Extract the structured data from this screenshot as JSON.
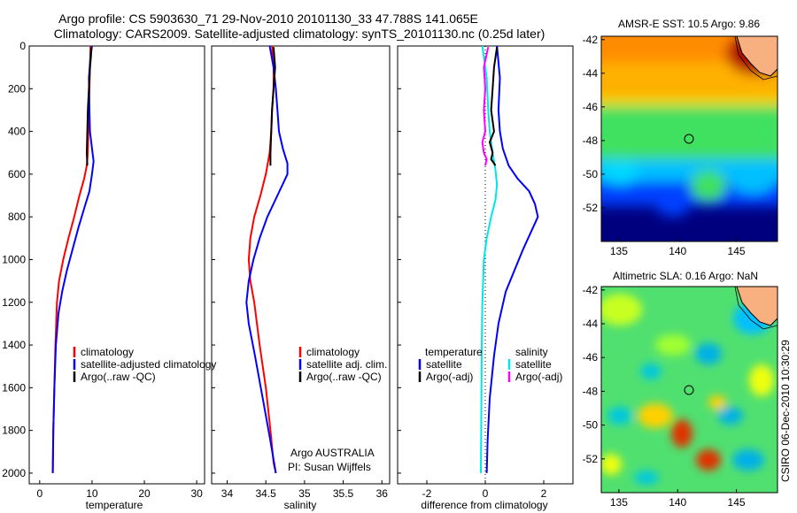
{
  "title": {
    "line1": "Argo profile: CS 5903630_71 29-Nov-2010 20101130_33 47.788S 141.065E",
    "line2": "Climatology: CARS2009. Satellite-adjusted climatology: synTS_20101130.nc (0.25d later)"
  },
  "credit": "CSIRO 06-Dec-2010 10:30:29",
  "chart_data": [
    {
      "type": "line",
      "name": "temperature-panel",
      "xlabel": "temperature",
      "ylabel": "",
      "xlim": [
        -2,
        31.5
      ],
      "ylim": [
        0,
        2050
      ],
      "y_reversed": true,
      "xticks": [
        0,
        10,
        20,
        30
      ],
      "yticks": [
        0,
        200,
        400,
        600,
        800,
        1000,
        1200,
        1400,
        1600,
        1800,
        2000
      ],
      "legend": [
        "climatology",
        "satellite-adjusted climatology",
        "Argo(..raw -QC)"
      ],
      "legend_position": "lower-right",
      "series": [
        {
          "label": "climatology",
          "color": "#ff0000",
          "x": [
            9.7,
            9.6,
            9.5,
            9.4,
            9.3,
            9.2,
            9.0,
            8.5,
            7.6,
            6.6,
            5.5,
            4.5,
            3.7,
            3.3,
            3.0,
            2.8,
            2.6,
            2.5
          ],
          "y": [
            0,
            100,
            200,
            300,
            400,
            500,
            560,
            620,
            700,
            800,
            900,
            1000,
            1100,
            1200,
            1400,
            1600,
            1800,
            2000
          ]
        },
        {
          "label": "satellite-adjusted climatology",
          "color": "#0000ff",
          "x": [
            10.0,
            9.7,
            9.4,
            9.5,
            9.6,
            10.0,
            10.3,
            10.0,
            9.5,
            8.5,
            7.4,
            6.3,
            5.2,
            4.3,
            3.6,
            3.1,
            2.8,
            2.6,
            2.5
          ],
          "y": [
            0,
            50,
            150,
            300,
            400,
            480,
            540,
            600,
            680,
            760,
            850,
            950,
            1050,
            1150,
            1250,
            1400,
            1600,
            1800,
            2000
          ]
        },
        {
          "label": "Argo(..raw -QC)",
          "color": "#000000",
          "x": [
            9.9,
            9.8,
            9.6,
            9.4,
            9.2,
            9.1,
            9.0,
            9.1
          ],
          "y": [
            5,
            50,
            100,
            200,
            300,
            400,
            500,
            560
          ]
        }
      ]
    },
    {
      "type": "line",
      "name": "salinity-panel",
      "xlabel": "salinity",
      "ylabel": "",
      "xlim": [
        33.8,
        36.1
      ],
      "ylim": [
        0,
        2050
      ],
      "y_reversed": true,
      "xticks": [
        34,
        34.5,
        35,
        35.5,
        36
      ],
      "legend": [
        "climatology",
        "satellite adj. clim.",
        "Argo(..raw -QC)"
      ],
      "legend_position": "lower-right",
      "annotations": [
        "Argo AUSTRALIA",
        "PI: Susan Wijffels"
      ],
      "series": [
        {
          "label": "climatology",
          "color": "#ff0000",
          "x": [
            34.58,
            34.6,
            34.6,
            34.58,
            34.57,
            34.55,
            34.5,
            34.43,
            34.35,
            34.3,
            34.28,
            34.3,
            34.35,
            34.42,
            34.5,
            34.56,
            34.6,
            34.63
          ],
          "y": [
            0,
            100,
            200,
            300,
            400,
            500,
            600,
            700,
            800,
            900,
            1000,
            1100,
            1200,
            1400,
            1600,
            1800,
            1950,
            2000
          ]
        },
        {
          "label": "satellite adj. clim.",
          "color": "#0000ff",
          "x": [
            34.55,
            34.6,
            34.63,
            34.65,
            34.67,
            34.72,
            34.78,
            34.78,
            34.65,
            34.52,
            34.42,
            34.34,
            34.28,
            34.25,
            34.28,
            34.36,
            34.46,
            34.56,
            34.63
          ],
          "y": [
            0,
            100,
            200,
            300,
            400,
            480,
            550,
            600,
            700,
            800,
            900,
            1000,
            1100,
            1200,
            1300,
            1450,
            1650,
            1850,
            2000
          ]
        },
        {
          "label": "Argo(..raw -QC)",
          "color": "#000000",
          "x": [
            34.6,
            34.62,
            34.6,
            34.58,
            34.57,
            34.56,
            34.56
          ],
          "y": [
            5,
            100,
            200,
            300,
            400,
            500,
            560
          ]
        }
      ]
    },
    {
      "type": "line",
      "name": "difference-panel",
      "xlabel": "difference from climatology",
      "ylabel": "",
      "xlim": [
        -3,
        3
      ],
      "ylim": [
        0,
        2050
      ],
      "y_reversed": true,
      "xticks": [
        -2,
        0,
        2
      ],
      "legend": [
        "temperature",
        "satellite",
        "Argo(-adj)",
        "salinity",
        "satellite",
        "Argo(-adj)"
      ],
      "legend_position": "lower-center",
      "series": [
        {
          "label": "temperature satellite",
          "color": "#0000ff",
          "x": [
            0.4,
            0.5,
            0.45,
            0.5,
            0.6,
            0.8,
            1.1,
            1.5,
            1.7,
            1.8,
            1.6,
            1.3,
            1.0,
            0.7,
            0.45,
            0.3,
            0.15,
            0.08,
            0.05
          ],
          "y": [
            0,
            150,
            300,
            400,
            480,
            560,
            620,
            680,
            740,
            800,
            860,
            950,
            1050,
            1150,
            1300,
            1450,
            1650,
            1850,
            2000
          ]
        },
        {
          "label": "salinity satellite",
          "color": "#00e6e6",
          "x": [
            -0.1,
            0.05,
            0.1,
            0.15,
            0.25,
            0.35,
            0.4,
            0.35,
            0.2,
            0.05,
            -0.05,
            -0.1,
            -0.12,
            -0.13,
            -0.14,
            -0.15
          ],
          "y": [
            0,
            150,
            300,
            400,
            500,
            580,
            650,
            720,
            800,
            900,
            1000,
            1200,
            1400,
            1600,
            1800,
            2000
          ]
        },
        {
          "label": "temperature Argo(-adj)",
          "color": "#000000",
          "x": [
            0.4,
            0.3,
            0.25,
            0.2,
            0.3,
            0.15,
            0.25,
            0.2,
            0.35
          ],
          "y": [
            5,
            100,
            200,
            300,
            400,
            450,
            500,
            530,
            560
          ]
        },
        {
          "label": "salinity Argo(-adj)",
          "color": "#ff00ff",
          "x": [
            0.1,
            -0.05,
            0.0,
            -0.05,
            0.0,
            -0.1,
            -0.05,
            0.05,
            0.0
          ],
          "y": [
            5,
            100,
            200,
            300,
            400,
            450,
            500,
            530,
            560
          ]
        }
      ],
      "reference_line": {
        "x": 0,
        "style": "dotted"
      }
    },
    {
      "type": "heatmap",
      "name": "sst-map",
      "title": "AMSR-E SST: 10.5 Argo: 9.86",
      "xlim": [
        133.5,
        148.5
      ],
      "ylim": [
        -54,
        -41.8
      ],
      "xticks": [
        135,
        140,
        145
      ],
      "yticks": [
        -42,
        -44,
        -46,
        -48,
        -50,
        -52
      ],
      "marker": {
        "lon": 141.065,
        "lat": -47.788
      },
      "colormap": [
        "#00007f",
        "#0000ff",
        "#00a0ff",
        "#00ffd0",
        "#60ff60",
        "#d0ff00",
        "#ffb000",
        "#ff6000",
        "#d00000",
        "#800000"
      ]
    },
    {
      "type": "heatmap",
      "name": "sla-map",
      "title": "Altimetric SLA: 0.16 Argo: NaN",
      "xlim": [
        133.5,
        148.5
      ],
      "ylim": [
        -54,
        -41.8
      ],
      "xticks": [
        135,
        140,
        145
      ],
      "yticks": [
        -42,
        -44,
        -46,
        -48,
        -50,
        -52
      ],
      "marker": {
        "lon": 141.065,
        "lat": -47.788
      },
      "colormap": [
        "#00007f",
        "#0000ff",
        "#00a0ff",
        "#00ffd0",
        "#60ff60",
        "#d0ff00",
        "#ffb000",
        "#ff6000",
        "#d00000",
        "#800000"
      ]
    }
  ]
}
